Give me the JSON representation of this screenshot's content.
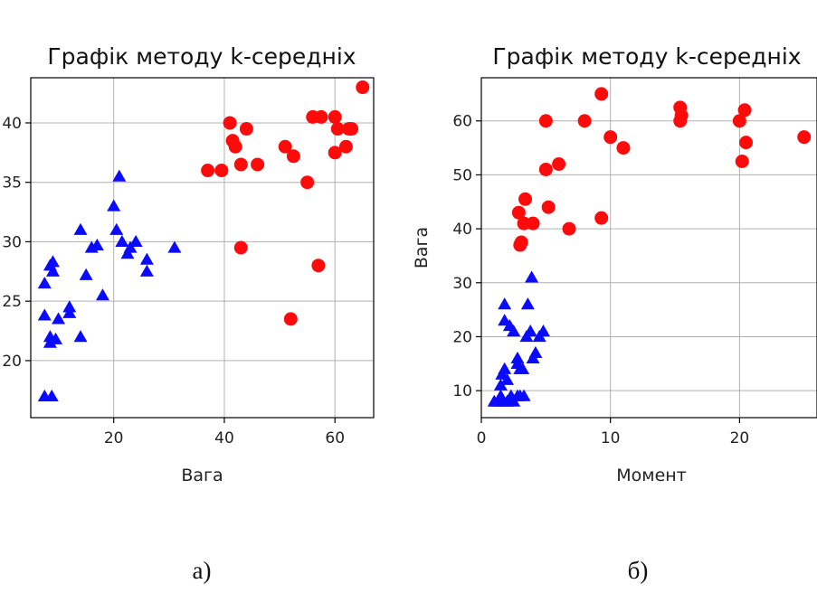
{
  "colors": {
    "cluster_a": "#0a0aff",
    "cluster_b": "#ff0a0a",
    "grid": "#b0b0b0"
  },
  "chart_data": [
    {
      "type": "scatter",
      "title": "Графік методу k-середніх",
      "xlabel": "Вага",
      "ylabel": "",
      "xlim": [
        5,
        67
      ],
      "ylim": [
        15.2,
        43.8
      ],
      "xticks": [
        20,
        40,
        60
      ],
      "yticks": [
        20,
        25,
        30,
        35,
        40
      ],
      "xtick_labels": [
        "20",
        "40",
        "60"
      ],
      "ytick_labels": [
        "20",
        "25",
        "30",
        "35",
        "40"
      ],
      "grid": true,
      "caption": "а)",
      "series": [
        {
          "marker": "triangle",
          "color": "#0a0aff",
          "points": [
            [
              7.5,
              17
            ],
            [
              8.8,
              17
            ],
            [
              7.5,
              23.8
            ],
            [
              7.5,
              26.5
            ],
            [
              8.5,
              28
            ],
            [
              9,
              28.3
            ],
            [
              9,
              27.5
            ],
            [
              8.5,
              22
            ],
            [
              9.5,
              21.8
            ],
            [
              8.5,
              21.5
            ],
            [
              10,
              23.5
            ],
            [
              12,
              24.5
            ],
            [
              12,
              24
            ],
            [
              14,
              22
            ],
            [
              14,
              31
            ],
            [
              15,
              27.2
            ],
            [
              16,
              29.5
            ],
            [
              17,
              29.7
            ],
            [
              18,
              25.5
            ],
            [
              20,
              33
            ],
            [
              20.5,
              31
            ],
            [
              21,
              35.5
            ],
            [
              21.5,
              30
            ],
            [
              22.5,
              29
            ],
            [
              23,
              29.5
            ],
            [
              24,
              30
            ],
            [
              26,
              28.5
            ],
            [
              26,
              27.5
            ],
            [
              31,
              29.5
            ]
          ]
        },
        {
          "marker": "circle",
          "color": "#ff0a0a",
          "points": [
            [
              37,
              36
            ],
            [
              39.5,
              36
            ],
            [
              41,
              40
            ],
            [
              41.5,
              38.5
            ],
            [
              42,
              38
            ],
            [
              43,
              36.5
            ],
            [
              43,
              29.5
            ],
            [
              44,
              39.5
            ],
            [
              46,
              36.5
            ],
            [
              51,
              38
            ],
            [
              52,
              23.5
            ],
            [
              52.5,
              37.2
            ],
            [
              55,
              35
            ],
            [
              56,
              40.5
            ],
            [
              57,
              28
            ],
            [
              57.5,
              40.5
            ],
            [
              60,
              40.5
            ],
            [
              60,
              37.5
            ],
            [
              60.5,
              39.5
            ],
            [
              62,
              38
            ],
            [
              62.5,
              39.5
            ],
            [
              63,
              39.5
            ],
            [
              65,
              43
            ]
          ]
        }
      ]
    },
    {
      "type": "scatter",
      "title": "Графік методу k-середніх",
      "xlabel": "Момент",
      "ylabel": "Вага",
      "xlim": [
        0,
        26
      ],
      "ylim": [
        5,
        68
      ],
      "xticks": [
        0,
        10,
        20
      ],
      "yticks": [
        10,
        20,
        30,
        40,
        50,
        60
      ],
      "xtick_labels": [
        "0",
        "10",
        "20"
      ],
      "ytick_labels": [
        "10",
        "20",
        "30",
        "40",
        "50",
        "60"
      ],
      "grid": true,
      "caption": "б)",
      "series": [
        {
          "marker": "triangle",
          "color": "#0a0aff",
          "points": [
            [
              1,
              8
            ],
            [
              1.3,
              8
            ],
            [
              1.5,
              9
            ],
            [
              1.7,
              8
            ],
            [
              2,
              8
            ],
            [
              2.3,
              9
            ],
            [
              2.5,
              8
            ],
            [
              2.8,
              9
            ],
            [
              3,
              9
            ],
            [
              3.3,
              9
            ],
            [
              1.5,
              11
            ],
            [
              1.6,
              13
            ],
            [
              1.8,
              14
            ],
            [
              2,
              12
            ],
            [
              2.2,
              22
            ],
            [
              2.5,
              21
            ],
            [
              1.8,
              23
            ],
            [
              2.8,
              16
            ],
            [
              3,
              14
            ],
            [
              3.2,
              14
            ],
            [
              2.8,
              15
            ],
            [
              3.5,
              20
            ],
            [
              3.8,
              21
            ],
            [
              4,
              16
            ],
            [
              4.2,
              17
            ],
            [
              4.5,
              20
            ],
            [
              4.8,
              21
            ],
            [
              1.8,
              26
            ],
            [
              3.6,
              26
            ],
            [
              3.9,
              31
            ]
          ]
        },
        {
          "marker": "circle",
          "color": "#ff0a0a",
          "points": [
            [
              3,
              37
            ],
            [
              3.1,
              37.5
            ],
            [
              3.3,
              41
            ],
            [
              3.4,
              45.5
            ],
            [
              2.9,
              43
            ],
            [
              4,
              41
            ],
            [
              5,
              60
            ],
            [
              5,
              51
            ],
            [
              5.2,
              44
            ],
            [
              6,
              52
            ],
            [
              6.8,
              40
            ],
            [
              8,
              60
            ],
            [
              9.3,
              65
            ],
            [
              9.3,
              42
            ],
            [
              10,
              57
            ],
            [
              11,
              55
            ],
            [
              15.4,
              62.5
            ],
            [
              15.4,
              60
            ],
            [
              15.5,
              61
            ],
            [
              20,
              60
            ],
            [
              20.2,
              52.5
            ],
            [
              20.4,
              62
            ],
            [
              20.5,
              56
            ],
            [
              25,
              57
            ]
          ]
        }
      ]
    }
  ]
}
